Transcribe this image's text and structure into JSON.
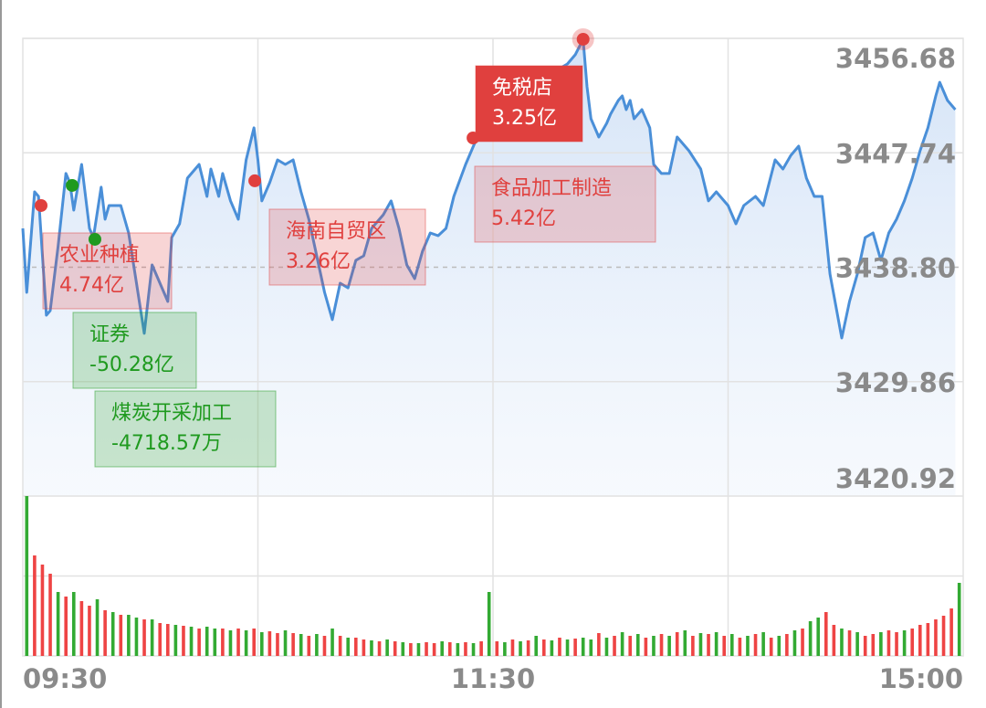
{
  "chart_data": {
    "type": "line",
    "xlim": [
      0,
      240
    ],
    "xticks": [
      {
        "value": 0,
        "label": "09:30"
      },
      {
        "value": 120,
        "label": "11:30"
      },
      {
        "value": 240,
        "label": "15:00"
      }
    ],
    "ylim": [
      3420.92,
      3456.68
    ],
    "yticks": [
      3420.92,
      3429.86,
      {
        "value": 3438.8,
        "label": "3438.80"
      },
      3447.74,
      3456.68
    ],
    "grid": true,
    "series": [
      {
        "color": "#4a8fd8",
        "x": [
          0,
          1,
          3,
          4,
          6,
          7,
          9,
          11,
          12,
          13,
          15,
          17,
          18,
          20,
          21,
          22,
          25,
          27,
          29,
          31,
          33,
          36,
          37,
          38,
          40,
          42,
          45,
          47,
          48,
          50,
          51,
          53,
          55,
          57,
          59,
          60,
          61,
          63,
          65,
          67,
          69,
          71,
          73,
          75,
          77,
          79,
          81,
          83,
          85,
          87,
          89,
          92,
          94,
          96,
          98,
          100,
          102,
          104,
          106,
          108,
          110,
          113,
          116,
          119,
          122,
          125,
          130,
          135,
          139,
          141,
          143,
          144,
          145,
          147,
          149,
          150,
          152,
          153,
          154,
          155,
          156,
          158,
          160,
          161,
          163,
          165,
          167,
          170,
          173,
          175,
          177,
          180,
          182,
          184,
          187,
          189,
          192,
          194,
          196,
          198,
          200,
          202,
          204,
          206,
          209,
          211,
          213,
          215,
          217,
          219,
          221,
          223,
          225,
          227,
          229,
          231,
          233,
          234,
          236,
          238
        ],
        "values": [
          3441.83,
          3436.84,
          3444.69,
          3444.33,
          3435.05,
          3435.41,
          3440.41,
          3446.12,
          3445.4,
          3443.26,
          3446.83,
          3441.83,
          3441.12,
          3445.05,
          3442.55,
          3443.62,
          3443.62,
          3441.48,
          3437.55,
          3433.63,
          3438.98,
          3436.84,
          3436.12,
          3441.12,
          3442.19,
          3445.76,
          3446.83,
          3444.33,
          3446.47,
          3444.33,
          3446.12,
          3443.98,
          3442.55,
          3447.19,
          3449.69,
          3447.19,
          3443.98,
          3445.4,
          3447.19,
          3446.83,
          3447.19,
          3444.69,
          3442.55,
          3439.69,
          3436.84,
          3434.7,
          3437.55,
          3437.19,
          3439.34,
          3439.69,
          3441.83,
          3442.9,
          3443.98,
          3441.83,
          3438.98,
          3437.91,
          3440.05,
          3441.48,
          3441.26,
          3441.83,
          3444.33,
          3446.83,
          3448.97,
          3451.11,
          3452.18,
          3452.54,
          3453.25,
          3453.97,
          3454.68,
          3455.4,
          3456.61,
          3452.9,
          3450.4,
          3448.97,
          3450.04,
          3450.76,
          3451.83,
          3452.18,
          3451.11,
          3451.83,
          3450.4,
          3451.11,
          3449.69,
          3446.83,
          3446.12,
          3446.12,
          3448.97,
          3447.9,
          3446.47,
          3443.98,
          3444.69,
          3443.62,
          3442.19,
          3443.62,
          3444.33,
          3443.62,
          3447.19,
          3446.47,
          3447.54,
          3448.26,
          3445.76,
          3444.33,
          3444.33,
          3438.27,
          3433.27,
          3436.12,
          3438.27,
          3441.12,
          3441.48,
          3439.34,
          3441.48,
          3442.55,
          3443.98,
          3445.76,
          3447.9,
          3449.69,
          3452.18,
          3453.25,
          3451.83,
          3451.11
        ]
      }
    ],
    "annotations": [
      {
        "x": 4.66,
        "y": 3443.62,
        "name": "农业种植",
        "amount": "4.74亿",
        "color": "#e0403e"
      },
      {
        "x": 12.6,
        "y": 3445.19,
        "name": "证券",
        "amount": "-50.28亿",
        "color": "#1f9a1f"
      },
      {
        "x": 18.4,
        "y": 3440.98,
        "name": "煤炭开采加工",
        "amount": "-4718.57万",
        "color": "#1f9a1f"
      },
      {
        "x": 59.2,
        "y": 3445.55,
        "name": "海南自贸区",
        "amount": "3.26亿",
        "color": "#e0403e"
      },
      {
        "x": 114.9,
        "y": 3448.9,
        "name": "食品加工制造",
        "amount": "5.42亿",
        "color": "#e0403e"
      },
      {
        "x": 143,
        "y": 3456.61,
        "name": "免税店",
        "amount": "3.25亿",
        "color": "#e0403e",
        "highlight": true
      }
    ],
    "volume": {
      "values": [
        175,
        110,
        100,
        90,
        70,
        65,
        70,
        60,
        55,
        62,
        50,
        48,
        45,
        45,
        42,
        40,
        40,
        36,
        35,
        34,
        33,
        32,
        30,
        32,
        30,
        30,
        28,
        30,
        28,
        30,
        26,
        27,
        25,
        28,
        25,
        24,
        22,
        24,
        22,
        30,
        22,
        20,
        20,
        18,
        17,
        16,
        18,
        16,
        15,
        14,
        14,
        15,
        14,
        16,
        15,
        14,
        15,
        14,
        16,
        70,
        16,
        15,
        18,
        16,
        17,
        22,
        18,
        17,
        20,
        18,
        19,
        20,
        18,
        25,
        20,
        22,
        26,
        22,
        24,
        20,
        22,
        24,
        22,
        26,
        28,
        22,
        25,
        24,
        26,
        22,
        24,
        20,
        22,
        24,
        26,
        20,
        22,
        24,
        28,
        30,
        38,
        42,
        48,
        34,
        30,
        28,
        26,
        22,
        24,
        26,
        28,
        26,
        28,
        30,
        34,
        36,
        40,
        44,
        52,
        80
      ],
      "colors": [
        "#3a3",
        "#e44",
        "#e44",
        "#e44",
        "#3a3",
        "#e44",
        "#3a3",
        "#e44",
        "#e44",
        "#3a3",
        "#e44",
        "#3a3",
        "#e44",
        "#3a3",
        "#3a3",
        "#e44",
        "#3a3",
        "#e44",
        "#e44",
        "#3a3",
        "#e44",
        "#3a3",
        "#e44",
        "#3a3",
        "#3a3",
        "#e44",
        "#3a3",
        "#e44",
        "#3a3",
        "#e44",
        "#3a3",
        "#e44",
        "#e44",
        "#3a3",
        "#e44",
        "#3a3",
        "#e44",
        "#3a3",
        "#e44",
        "#3a3",
        "#e44",
        "#3a3",
        "#e44",
        "#e44",
        "#3a3",
        "#e44",
        "#3a3",
        "#e44",
        "#3a3",
        "#e44",
        "#3a3",
        "#e44",
        "#e44",
        "#3a3",
        "#e44",
        "#3a3",
        "#e44",
        "#3a3",
        "#e44",
        "#3a3",
        "#e44",
        "#3a3",
        "#e44",
        "#3a3",
        "#e44",
        "#3a3",
        "#e44",
        "#3a3",
        "#e44",
        "#3a3",
        "#e44",
        "#3a3",
        "#3a3",
        "#e44",
        "#3a3",
        "#e44",
        "#3a3",
        "#e44",
        "#3a3",
        "#e44",
        "#3a3",
        "#e44",
        "#3a3",
        "#e44",
        "#3a3",
        "#e44",
        "#3a3",
        "#e44",
        "#3a3",
        "#e44",
        "#3a3",
        "#e44",
        "#3a3",
        "#e44",
        "#3a3",
        "#e44",
        "#3a3",
        "#e44",
        "#3a3",
        "#e44",
        "#3a3",
        "#3a3",
        "#e44",
        "#e44",
        "#3a3",
        "#e44",
        "#3a3",
        "#e44",
        "#e44",
        "#3a3",
        "#e44",
        "#e44",
        "#3a3",
        "#e44",
        "#e44",
        "#e44",
        "#e44",
        "#e44",
        "#e44",
        "#3a3"
      ]
    }
  }
}
